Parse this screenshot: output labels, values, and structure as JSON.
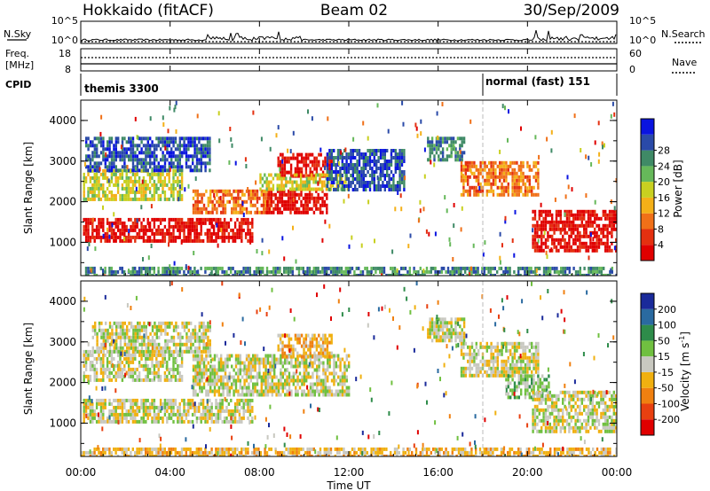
{
  "header": {
    "station": "Hokkaido (fitACF)",
    "beam": "Beam 02",
    "date": "30/Sep/2009"
  },
  "summary": {
    "nsky_label": "N.Sky",
    "nsearch_label": "N.Search",
    "freq_label_line1": "Freq.",
    "freq_label_line2": "[MHz]",
    "nave_label": "Nave",
    "cpid_label": "CPID",
    "nsky_ticks": [
      "10^5",
      "10^0"
    ],
    "nsearch_ticks": [
      "10^5",
      "10^0"
    ],
    "freq_ticks": [
      "18",
      "8"
    ],
    "nave_ticks": [
      "60",
      "0"
    ]
  },
  "cpid": {
    "first": "themis 3300",
    "second": "normal (fast) 151",
    "switch_time_hours": 18.0
  },
  "axes": {
    "ylabel": "Slant Range [km]",
    "xlabel": "Time UT",
    "x_ticks": [
      "00:00",
      "04:00",
      "08:00",
      "12:00",
      "16:00",
      "20:00",
      "00:00"
    ],
    "y_ticks": [
      "1000",
      "2000",
      "3000",
      "4000"
    ],
    "xlim_hours": [
      0,
      24
    ],
    "ylim_km": [
      180,
      4500
    ]
  },
  "colors": {
    "power": [
      "#0a14e0",
      "#2a4aa8",
      "#3f8a66",
      "#66b85a",
      "#c8d020",
      "#f4b018",
      "#f07018",
      "#e43010",
      "#e00000"
    ],
    "velocity": [
      "#1a2a9a",
      "#2a6aa0",
      "#2e8c4a",
      "#70c040",
      "#c8c8c0",
      "#f0b010",
      "#f08010",
      "#e84010",
      "#e00000"
    ]
  },
  "chart_data": [
    {
      "type": "heatmap",
      "title": "Power",
      "colorbar_label": "Power [dB]",
      "colorbar_ticks": [
        "4",
        "8",
        "12",
        "16",
        "20",
        "24",
        "28"
      ],
      "ylabel": "Slant Range [km]",
      "xlim": [
        0,
        24
      ],
      "ylim": [
        180,
        4500
      ],
      "regions": [
        {
          "t0": 0.1,
          "t1": 7.7,
          "r0": 1000,
          "r1": 1600,
          "level": 8
        },
        {
          "t0": 0.1,
          "t1": 4.5,
          "r0": 2100,
          "r1": 2800,
          "level": 4
        },
        {
          "t0": 0.2,
          "t1": 5.8,
          "r0": 2800,
          "r1": 3600,
          "level": 1
        },
        {
          "t0": 5.0,
          "t1": 8.5,
          "r0": 1700,
          "r1": 2300,
          "level": 6
        },
        {
          "t0": 8.3,
          "t1": 11.0,
          "r0": 1700,
          "r1": 2300,
          "level": 8
        },
        {
          "t0": 8.8,
          "t1": 11.2,
          "r0": 2600,
          "r1": 3200,
          "level": 8
        },
        {
          "t0": 8.0,
          "t1": 12.0,
          "r0": 2300,
          "r1": 2700,
          "level": 4
        },
        {
          "t0": 11.0,
          "t1": 14.5,
          "r0": 2300,
          "r1": 3300,
          "level": 1
        },
        {
          "t0": 15.5,
          "t1": 17.2,
          "r0": 3000,
          "r1": 3600,
          "level": 2
        },
        {
          "t0": 17.0,
          "t1": 20.5,
          "r0": 2200,
          "r1": 3000,
          "level": 6
        },
        {
          "t0": 20.2,
          "t1": 24.0,
          "r0": 800,
          "r1": 1800,
          "level": 8
        },
        {
          "t0": 0.0,
          "t1": 24.0,
          "r0": 200,
          "r1": 400,
          "level": 2
        }
      ]
    },
    {
      "type": "heatmap",
      "title": "Velocity",
      "colorbar_label": "Velocity [m s^-1]",
      "colorbar_ticks": [
        "200",
        "100",
        "50",
        "15",
        "-15",
        "-50",
        "-100",
        "-200"
      ],
      "ylabel": "Slant Range [km]",
      "xlim": [
        0,
        24
      ],
      "ylim": [
        180,
        4500
      ],
      "regions": [
        {
          "t0": 0.1,
          "t1": 7.7,
          "r0": 1000,
          "r1": 1600,
          "level": 4
        },
        {
          "t0": 0.1,
          "t1": 4.5,
          "r0": 2100,
          "r1": 2800,
          "level": 4
        },
        {
          "t0": 0.5,
          "t1": 5.8,
          "r0": 2800,
          "r1": 3500,
          "level": 4
        },
        {
          "t0": 5.0,
          "t1": 12.0,
          "r0": 1700,
          "r1": 2700,
          "level": 4
        },
        {
          "t0": 8.8,
          "t1": 11.2,
          "r0": 2600,
          "r1": 3200,
          "level": 5
        },
        {
          "t0": 15.5,
          "t1": 17.2,
          "r0": 3000,
          "r1": 3600,
          "level": 4
        },
        {
          "t0": 17.0,
          "t1": 20.5,
          "r0": 2200,
          "r1": 3000,
          "level": 4
        },
        {
          "t0": 19.0,
          "t1": 21.0,
          "r0": 1600,
          "r1": 2200,
          "level": 3
        },
        {
          "t0": 20.2,
          "t1": 24.0,
          "r0": 800,
          "r1": 1800,
          "level": 4
        },
        {
          "t0": 0.0,
          "t1": 24.0,
          "r0": 200,
          "r1": 400,
          "level": 5
        }
      ]
    }
  ]
}
